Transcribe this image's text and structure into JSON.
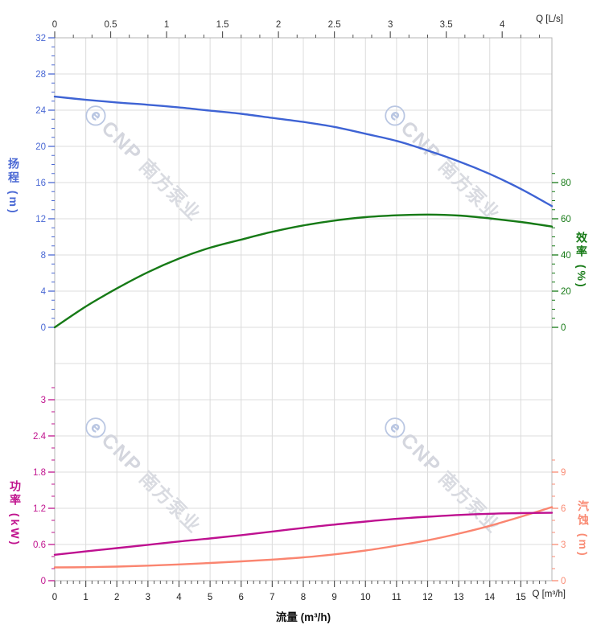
{
  "watermark": {
    "logo": "ⓔ",
    "brand": "CNP",
    "cjk": "南方泵业"
  },
  "labels": {
    "flow_axis_title": "流量 (m³/h)",
    "top_unit": "Q [L/s]",
    "bottom_unit": "Q [m³/h]"
  },
  "colors": {
    "head": "#3e63d4",
    "efficiency": "#167a16",
    "power": "#be1090",
    "npsh": "#fa8570",
    "grid": "#dcdcdc",
    "border": "#b4b4b4",
    "axis_tick": "#555555",
    "axis_text": "#333333"
  },
  "chart_data": [
    {
      "type": "line",
      "title": "Head & efficiency vs flow",
      "x_m3h": [
        0,
        1,
        2,
        3,
        4,
        5,
        6,
        7,
        8,
        9,
        10,
        11,
        12,
        13,
        14,
        15,
        16
      ],
      "series": [
        {
          "name": "扬程",
          "unit": "m",
          "axis": "head",
          "color": "#3e63d4",
          "values": [
            25.5,
            25.15,
            24.85,
            24.6,
            24.3,
            23.95,
            23.6,
            23.15,
            22.7,
            22.15,
            21.4,
            20.6,
            19.55,
            18.35,
            16.95,
            15.3,
            13.4
          ]
        },
        {
          "name": "效率",
          "unit": "%",
          "axis": "eff",
          "color": "#167a16",
          "values": [
            0,
            11.5,
            21.5,
            30.5,
            38,
            44,
            48.5,
            52.8,
            56.3,
            59,
            60.9,
            61.9,
            62.3,
            61.8,
            60.2,
            58.2,
            55.7
          ]
        }
      ],
      "axes": {
        "top": {
          "label": "Q [L/s]",
          "ticks": [
            0,
            0.5,
            1,
            1.5,
            2,
            2.5,
            3,
            3.5,
            4
          ],
          "range": [
            0,
            4.45
          ]
        },
        "left": {
          "label": "扬程 (m)",
          "ticks": [
            0,
            4,
            8,
            12,
            16,
            20,
            24,
            28,
            32
          ],
          "range": [
            0,
            32
          ]
        },
        "right": {
          "label": "效率 (%)",
          "ticks": [
            0,
            20,
            40,
            60,
            80
          ],
          "range": [
            0,
            85
          ]
        }
      }
    },
    {
      "type": "line",
      "title": "Power & NPSH vs flow",
      "x_m3h": [
        0,
        1,
        2,
        3,
        4,
        5,
        6,
        7,
        8,
        9,
        10,
        11,
        12,
        13,
        14,
        15,
        16
      ],
      "series": [
        {
          "name": "汽蚀",
          "unit": "m",
          "axis": "npsh",
          "color": "#fa8570",
          "values": [
            1.1,
            1.12,
            1.17,
            1.25,
            1.35,
            1.47,
            1.6,
            1.75,
            1.93,
            2.18,
            2.5,
            2.9,
            3.35,
            3.9,
            4.55,
            5.3,
            6.1
          ]
        },
        {
          "name": "功率",
          "unit": "kW",
          "axis": "power",
          "color": "#be1090",
          "values": [
            0.43,
            0.485,
            0.54,
            0.595,
            0.65,
            0.7,
            0.755,
            0.815,
            0.875,
            0.93,
            0.98,
            1.025,
            1.06,
            1.09,
            1.11,
            1.12,
            1.125
          ]
        }
      ],
      "axes": {
        "bottom": {
          "label": "流量 (m³/h)",
          "unit_label": "Q [m³/h]",
          "ticks": [
            0,
            1,
            2,
            3,
            4,
            5,
            6,
            7,
            8,
            9,
            10,
            11,
            12,
            13,
            14,
            15
          ],
          "range": [
            0,
            16
          ]
        },
        "left": {
          "label": "功率 (kW)",
          "ticks": [
            0,
            0.6,
            1.2,
            1.8,
            2.4,
            3
          ],
          "range": [
            0,
            3.2
          ]
        },
        "right": {
          "label": "汽蚀 (m)",
          "ticks": [
            0,
            3,
            6,
            9
          ],
          "range": [
            0,
            10
          ]
        }
      }
    }
  ]
}
